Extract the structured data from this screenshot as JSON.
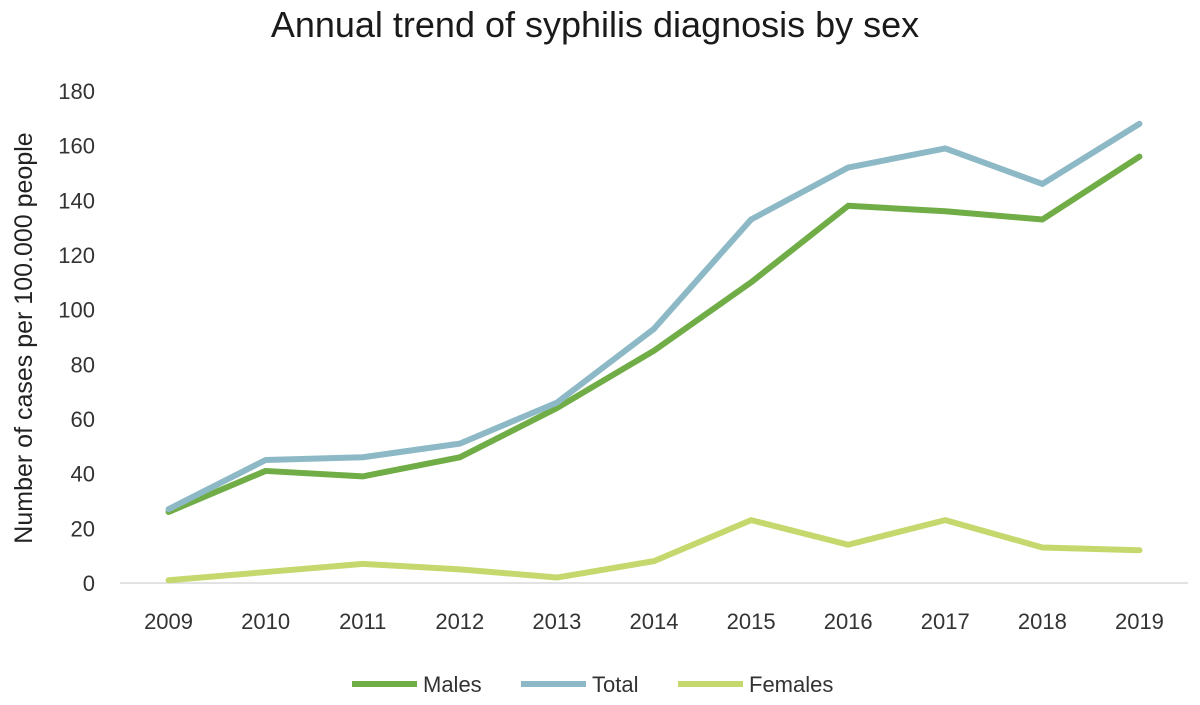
{
  "chart_data": {
    "type": "line",
    "title": "Annual trend of syphilis diagnosis by sex",
    "xlabel": "",
    "ylabel": "Number of cases per 100.000 people",
    "categories": [
      "2009",
      "2010",
      "2011",
      "2012",
      "2013",
      "2014",
      "2015",
      "2016",
      "2017",
      "2018",
      "2019"
    ],
    "ylim": [
      0,
      180
    ],
    "yticks": [
      0,
      20,
      40,
      60,
      80,
      100,
      120,
      140,
      160,
      180
    ],
    "grid": false,
    "legend_position": "bottom",
    "series": [
      {
        "name": "Males",
        "color": "#70ad47",
        "values": [
          26,
          41,
          39,
          46,
          64,
          85,
          110,
          138,
          136,
          133,
          156
        ]
      },
      {
        "name": "Total",
        "color": "#8db9c6",
        "values": [
          27,
          45,
          46,
          51,
          66,
          93,
          133,
          152,
          159,
          146,
          168
        ]
      },
      {
        "name": "Females",
        "color": "#c5d86d",
        "values": [
          1,
          4,
          7,
          5,
          2,
          8,
          23,
          14,
          23,
          13,
          12
        ]
      }
    ]
  }
}
